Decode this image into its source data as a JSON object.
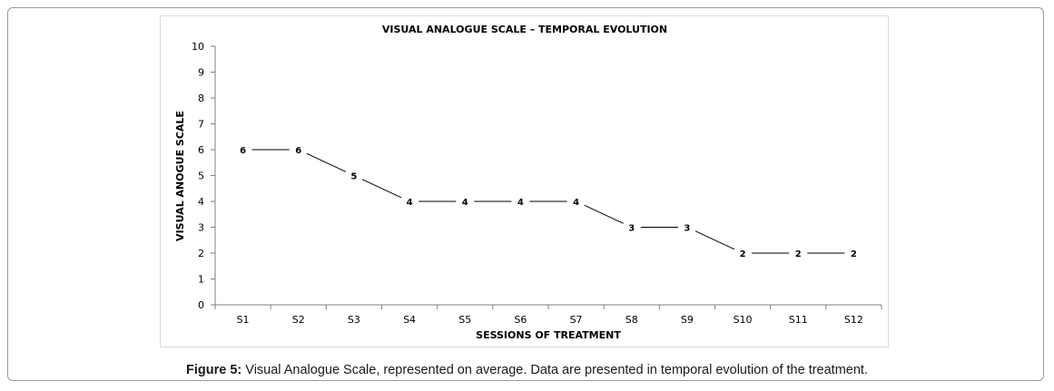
{
  "caption": {
    "label": "Figure 5:",
    "text": " Visual Analogue Scale, represented on average. Data are presented in temporal evolution of the treatment."
  },
  "chart_data": {
    "type": "line",
    "title": "VISUAL ANALOGUE SCALE – TEMPORAL EVOLUTION",
    "xlabel": "SESSIONS OF TREATMENT",
    "ylabel": "VISUAL ANOGUE SCALE",
    "categories": [
      "S1",
      "S2",
      "S3",
      "S4",
      "S5",
      "S6",
      "S7",
      "S8",
      "S9",
      "S10",
      "S11",
      "S12"
    ],
    "series": [
      {
        "values": [
          6,
          6,
          5,
          4,
          4,
          4,
          4,
          3,
          3,
          2,
          2,
          2
        ]
      }
    ],
    "ylim": [
      0,
      10
    ],
    "yticks": [
      0,
      1,
      2,
      3,
      4,
      5,
      6,
      7,
      8,
      9,
      10
    ],
    "data_labels": true,
    "grid": false,
    "legend": "none",
    "line_color": "#000000"
  }
}
